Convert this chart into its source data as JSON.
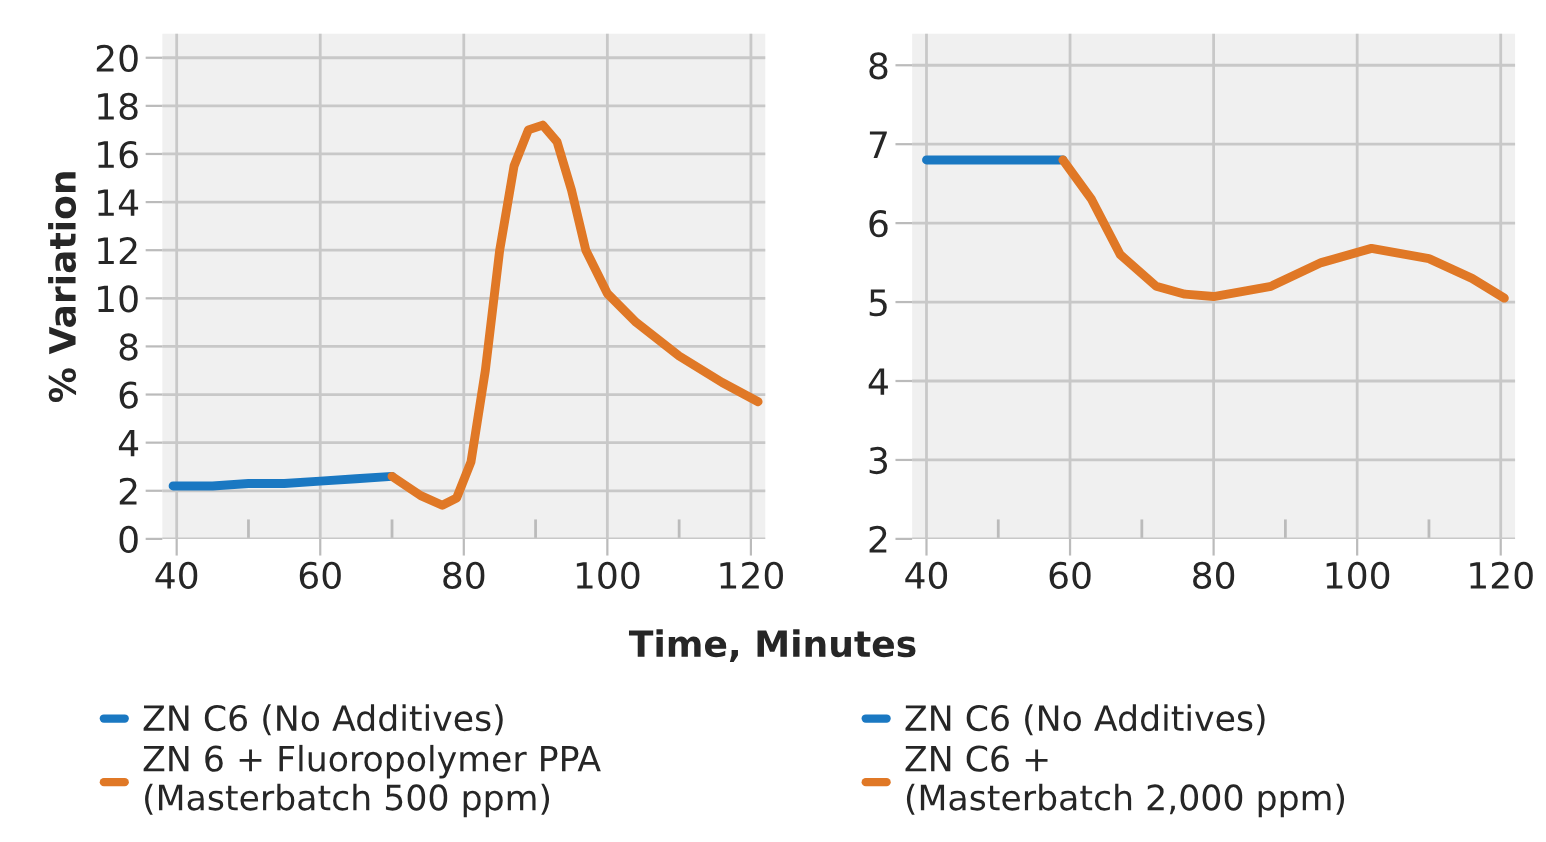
{
  "chart_data": [
    {
      "type": "line",
      "ylabel": "% Variation",
      "xlabel": "Time, Minutes",
      "xlim": [
        38,
        122
      ],
      "ylim": [
        0,
        21
      ],
      "xticks": [
        40,
        {
          "value": 50,
          "label": null
        },
        60,
        {
          "value": 70,
          "label": null
        },
        80,
        {
          "value": 90,
          "label": null
        },
        100,
        {
          "value": 110,
          "label": null
        },
        120
      ],
      "yticks": [
        0,
        2,
        4,
        6,
        8,
        10,
        12,
        14,
        16,
        18,
        20
      ],
      "grid": true,
      "legend": "bottom",
      "series": [
        {
          "name": "ZN C6 (No Additives)",
          "color": "#1a78c2",
          "x": [
            39.5,
            45,
            50,
            55,
            60,
            65,
            70
          ],
          "values": [
            2.2,
            2.2,
            2.3,
            2.3,
            2.4,
            2.5,
            2.6
          ]
        },
        {
          "name": "ZN 6 + Fluoropolymer PPA\n(Masterbatch 500 ppm)",
          "color": "#e07826",
          "x": [
            70,
            74,
            77,
            79,
            81,
            83,
            85,
            87,
            89,
            91,
            93,
            95,
            97,
            100,
            104,
            110,
            116,
            121
          ],
          "values": [
            2.6,
            1.8,
            1.4,
            1.7,
            3.2,
            7,
            12,
            15.5,
            17,
            17.2,
            16.5,
            14.5,
            12,
            10.2,
            9,
            7.6,
            6.5,
            5.7
          ]
        }
      ]
    },
    {
      "type": "line",
      "xlim": [
        38,
        122
      ],
      "ylim": [
        2,
        8.4
      ],
      "xticks": [
        40,
        {
          "value": 50,
          "label": null
        },
        60,
        {
          "value": 70,
          "label": null
        },
        80,
        {
          "value": 90,
          "label": null
        },
        100,
        {
          "value": 110,
          "label": null
        },
        120
      ],
      "yticks": [
        2,
        3,
        4,
        5,
        6,
        7,
        8
      ],
      "grid": true,
      "legend": "bottom",
      "series": [
        {
          "name": "ZN C6 (No Additives)",
          "color": "#1a78c2",
          "x": [
            40,
            50,
            59
          ],
          "values": [
            6.8,
            6.8,
            6.8
          ]
        },
        {
          "name": "ZN C6 +\n(Masterbatch 2,000 ppm)",
          "color": "#e07826",
          "x": [
            59,
            63,
            67,
            72,
            76,
            80,
            88,
            95,
            102,
            110,
            116,
            120.5
          ],
          "values": [
            6.8,
            6.3,
            5.6,
            5.2,
            5.1,
            5.07,
            5.2,
            5.5,
            5.68,
            5.55,
            5.3,
            5.05
          ]
        }
      ]
    }
  ]
}
